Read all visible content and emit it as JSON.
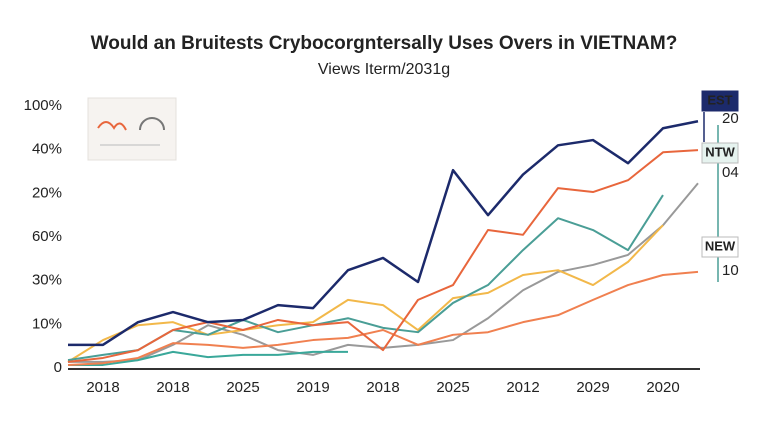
{
  "chart_data": {
    "type": "line",
    "title": "Would an Bruitests Crybocorgntersally Uses Overs in VIETNAM?",
    "subtitle": "Views Iterm/2031g",
    "categories": [
      null,
      "2018",
      null,
      "2018",
      null,
      "2025",
      null,
      "2019",
      null,
      "2018",
      null,
      "2025",
      null,
      "2012",
      null,
      "2029",
      null,
      "2020",
      null
    ],
    "ylim": [
      0,
      6
    ],
    "yticks": [
      0,
      {
        "value": 1,
        "label": "10%"
      },
      {
        "value": 2,
        "label": "30%"
      },
      {
        "value": 3,
        "label": "60%"
      },
      {
        "value": 4,
        "label": "20%"
      },
      {
        "value": 5,
        "label": "40%"
      },
      {
        "value": 6,
        "label": "100%"
      }
    ],
    "grid": false,
    "series": [
      {
        "color": "#999999",
        "values": [
          0.14,
          0.14,
          0.18,
          0.53,
          0.98,
          0.76,
          0.41,
          0.3,
          0.53,
          0.46,
          0.53,
          0.64,
          1.14,
          1.78,
          2.2,
          2.36,
          2.59,
          3.27,
          4.23
        ]
      },
      {
        "color": "#3aa89a",
        "values": [
          0.07,
          0.07,
          0.18,
          0.37,
          0.25,
          0.3,
          0.3,
          0.37,
          0.37,
          null,
          null,
          null,
          null,
          null,
          null,
          null,
          null,
          null,
          null
        ]
      },
      {
        "color": "#f08050",
        "values": [
          0.07,
          0.11,
          0.23,
          0.57,
          0.53,
          0.46,
          0.53,
          0.64,
          0.69,
          0.87,
          0.53,
          0.76,
          0.82,
          1.05,
          1.21,
          1.56,
          1.9,
          2.13,
          2.2
        ]
      },
      {
        "color": "#f2b84a",
        "values": [
          0.14,
          0.64,
          0.98,
          1.05,
          0.76,
          0.87,
          0.98,
          1.05,
          1.56,
          1.44,
          0.87,
          1.6,
          1.72,
          2.13,
          2.24,
          1.9,
          2.43,
          3.27,
          null
        ]
      },
      {
        "name": "NEW",
        "color": "#4a9e96",
        "values": [
          0.18,
          0.3,
          0.41,
          0.87,
          0.76,
          1.1,
          0.82,
          0.98,
          1.14,
          0.92,
          0.82,
          1.49,
          1.9,
          2.7,
          3.43,
          3.16,
          2.7,
          3.96,
          null
        ]
      },
      {
        "name": "NTW",
        "color": "#e8663c",
        "values": [
          0.14,
          0.23,
          0.41,
          0.87,
          1.05,
          0.87,
          1.1,
          0.98,
          1.05,
          0.41,
          1.56,
          1.9,
          3.16,
          3.05,
          4.12,
          4.03,
          4.3,
          4.94,
          4.99
        ]
      },
      {
        "name": "EST",
        "color": "#1c2a6b",
        "values": [
          0.53,
          0.53,
          1.05,
          1.28,
          1.05,
          1.1,
          1.44,
          1.37,
          2.24,
          2.52,
          1.97,
          4.53,
          3.5,
          4.43,
          5.1,
          5.22,
          4.69,
          5.49,
          5.65
        ]
      }
    ],
    "annotations": [
      "20",
      "04",
      "10"
    ]
  }
}
